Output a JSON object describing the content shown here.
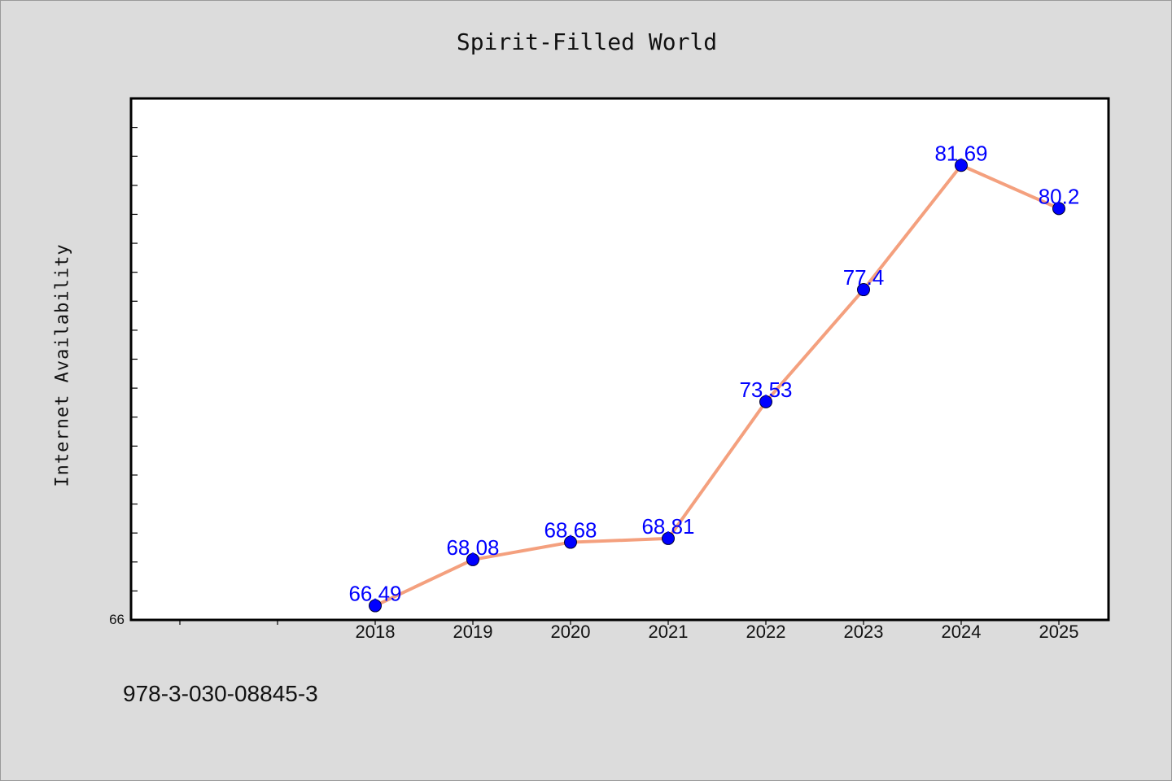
{
  "chart_data": {
    "type": "line",
    "title": "Spirit-Filled World",
    "xlabel": "",
    "ylabel": "Internet Availability",
    "x": [
      "2018",
      "2019",
      "2020",
      "2021",
      "2022",
      "2023",
      "2024",
      "2025"
    ],
    "series": [
      {
        "values": [
          66.49,
          68.08,
          68.68,
          68.81,
          73.53,
          77.4,
          81.69,
          80.2
        ],
        "data_labels": [
          "66.49",
          "68.08",
          "68.68",
          "68.81",
          "73.53",
          "77.4",
          "81.69",
          "80.2"
        ]
      }
    ],
    "x_slots": 10,
    "x_first_slot": 2,
    "ylim": [
      66,
      84
    ],
    "y_tick_labels": [
      "66"
    ],
    "grid": false,
    "legend": "none",
    "colors": {
      "line": "#f4a07e",
      "marker": "#0000ff",
      "data_label": "#0000ff",
      "plot_background": "#ffffff",
      "page_background": "#dcdcdc"
    }
  },
  "footnote": "978-3-030-08845-3"
}
